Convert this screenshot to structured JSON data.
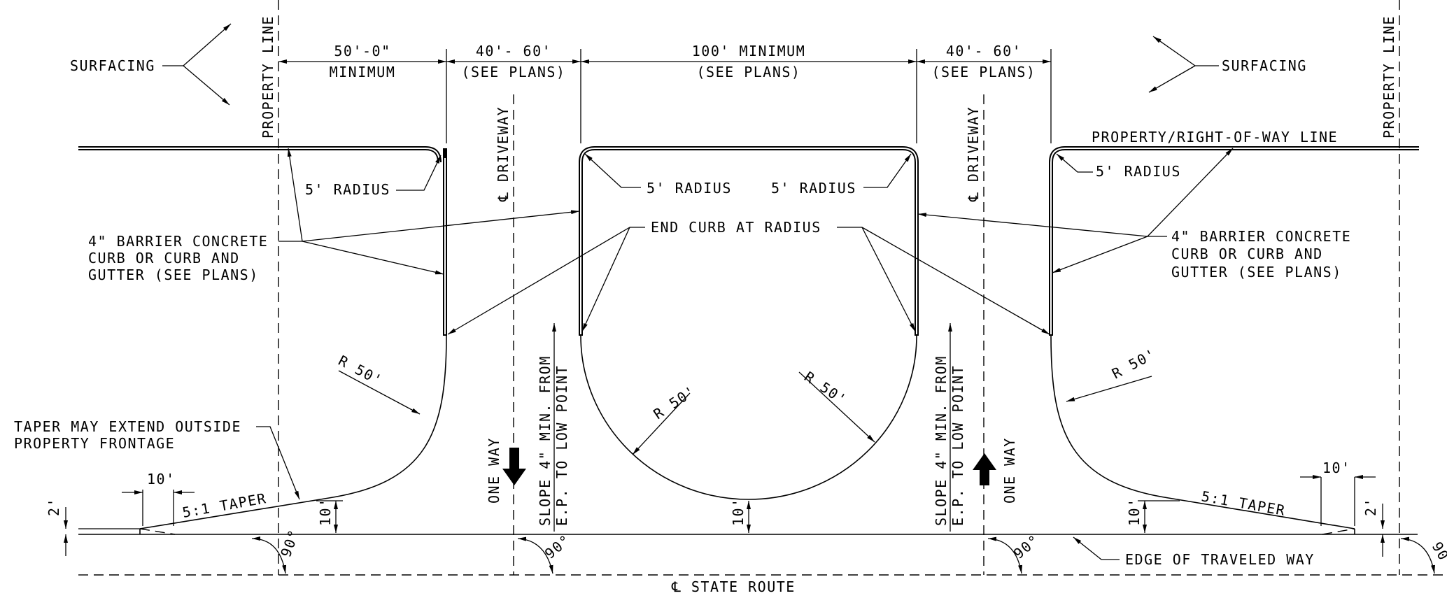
{
  "labels": {
    "surfacing": "SURFACING",
    "property_line": "PROPERTY LINE",
    "property_row_line": "PROPERTY/RIGHT-OF-WAY LINE",
    "dim_50": "50'-0\"",
    "minimum": "MINIMUM",
    "dim_40_60": "40'- 60'",
    "see_plans": "(SEE PLANS)",
    "dim_100": "100' MINIMUM",
    "driveway_cl": "℄ DRIVEWAY",
    "radius_5": "5' RADIUS",
    "curb_line1": "4\" BARRIER CONCRETE",
    "curb_line2": "CURB OR CURB AND",
    "curb_line3": "GUTTER (SEE PLANS)",
    "end_curb": "END CURB AT RADIUS",
    "r50": "R 50'",
    "taper_note1": "TAPER MAY EXTEND OUTSIDE",
    "taper_note2": "PROPERTY FRONTAGE",
    "dim_10": "10'",
    "dim_2": "2'",
    "taper_51": "5:1 TAPER",
    "one_way": "ONE WAY",
    "slope1": "SLOPE 4\" MIN. FROM",
    "slope2": "E.P. TO LOW POINT",
    "angle_90": "90°",
    "edge_tw": "EDGE OF TRAVELED WAY",
    "state_route": "℄ STATE ROUTE"
  }
}
